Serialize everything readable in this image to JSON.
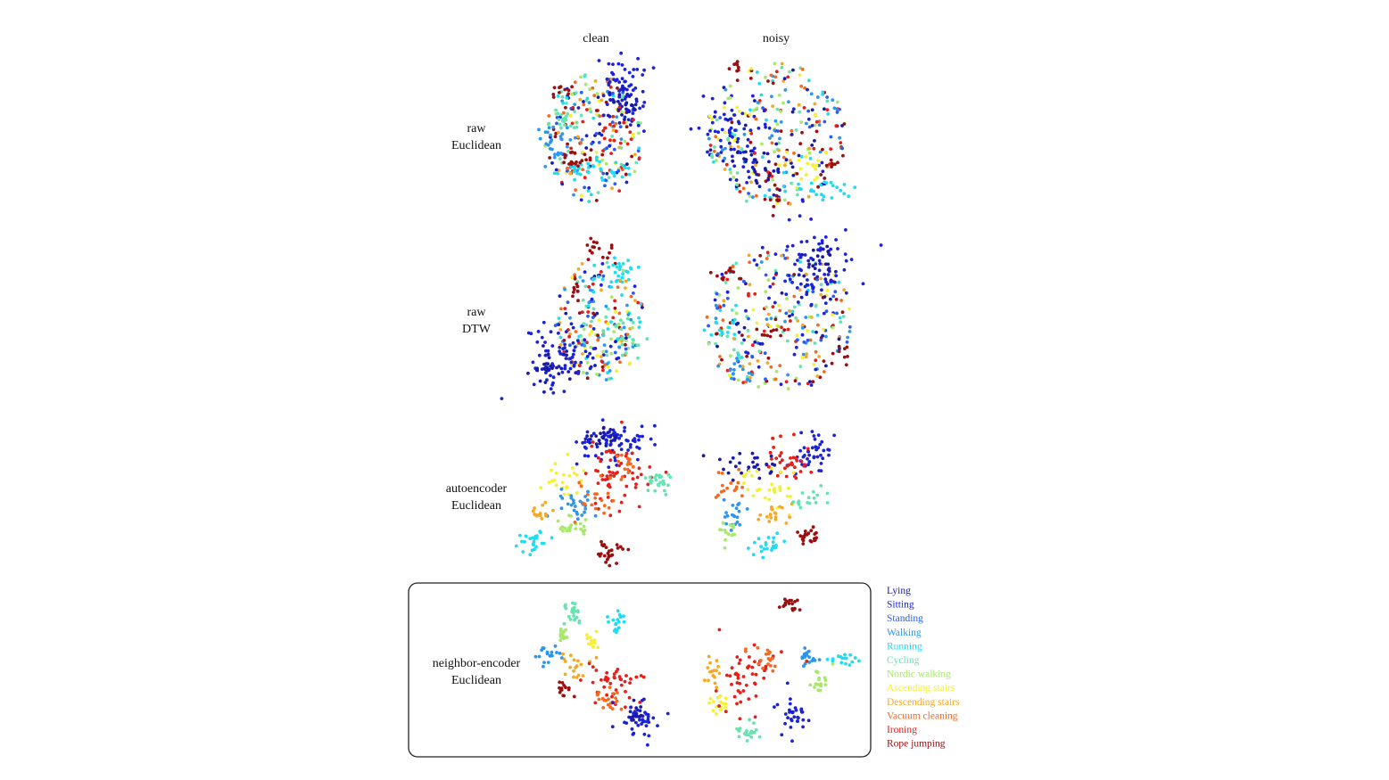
{
  "chart_data": {
    "type": "scatter",
    "columns": [
      "clean",
      "noisy"
    ],
    "rows": [
      {
        "label": [
          "raw",
          "Euclidean"
        ],
        "highlighted": false
      },
      {
        "label": [
          "raw",
          "DTW"
        ],
        "highlighted": false
      },
      {
        "label": [
          "autoencoder",
          "Euclidean"
        ],
        "highlighted": false
      },
      {
        "label": [
          "neighbor-encoder",
          "Euclidean"
        ],
        "highlighted": true
      }
    ],
    "classes": [
      {
        "name": "Lying",
        "color": "#1a1aa8"
      },
      {
        "name": "Sitting",
        "color": "#1c22d8"
      },
      {
        "name": "Standing",
        "color": "#2a5cf5"
      },
      {
        "name": "Walking",
        "color": "#2b96f0"
      },
      {
        "name": "Running",
        "color": "#20dcf0"
      },
      {
        "name": "Cycling",
        "color": "#66e3b0"
      },
      {
        "name": "Nordic walking",
        "color": "#a8e86a"
      },
      {
        "name": "Ascending stairs",
        "color": "#f5f030"
      },
      {
        "name": "Descending stairs",
        "color": "#f5a828"
      },
      {
        "name": "Vacuum cleaning",
        "color": "#f56a20"
      },
      {
        "name": "Ironing",
        "color": "#e81e18"
      },
      {
        "name": "Rope jumping",
        "color": "#9a1010"
      }
    ],
    "legend_position": "right",
    "axes_visible": false,
    "grid": false
  }
}
